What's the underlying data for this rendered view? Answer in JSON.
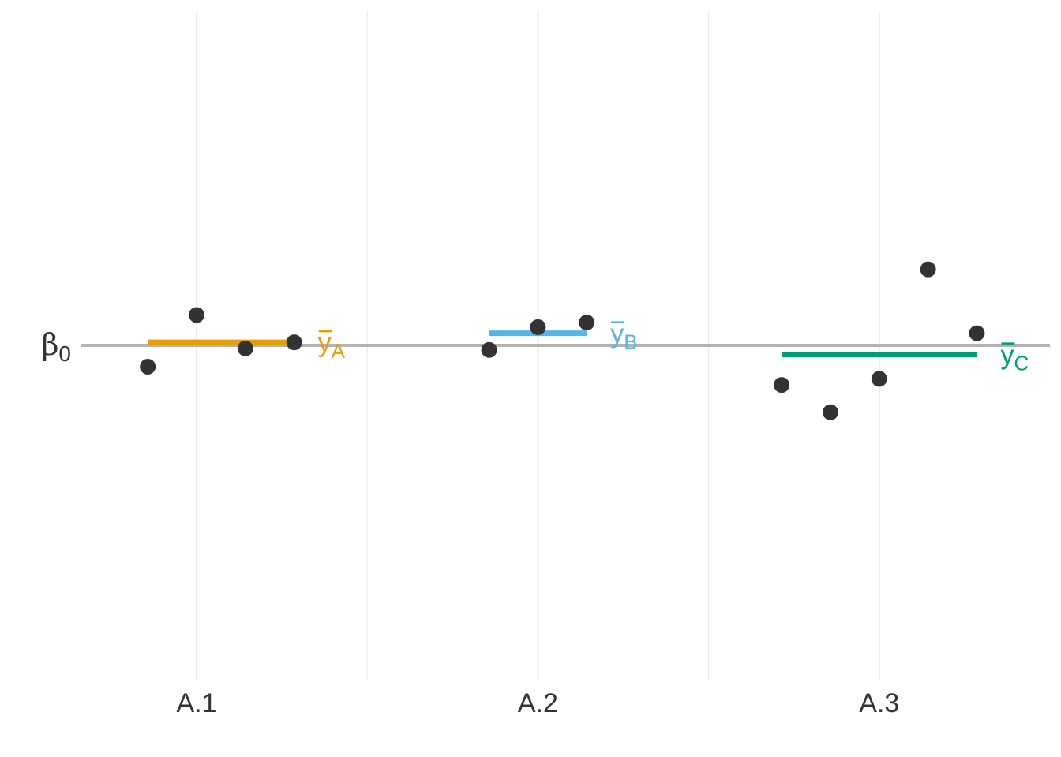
{
  "chart_data": {
    "type": "scatter",
    "title": "",
    "xlabel": "",
    "ylabel": "",
    "x_ticks": [
      "A.1",
      "A.2",
      "A.3"
    ],
    "x_tick_positions": [
      1,
      2,
      3
    ],
    "xlim": [
      0.66,
      3.5
    ],
    "ylim": [
      -1.1,
      1.1
    ],
    "grid": "vertical",
    "reference_line": {
      "label": "β",
      "subscript": "0",
      "value": 0,
      "color": "#b3b3b3"
    },
    "groups": [
      {
        "label": "y",
        "subscript": "A",
        "color": "#e69f00",
        "mean": 0.01,
        "mean_x_range": [
          0.857,
          1.286
        ],
        "points": [
          {
            "x": 0.857,
            "y": -0.07
          },
          {
            "x": 1.0,
            "y": 0.1
          },
          {
            "x": 1.143,
            "y": -0.01
          },
          {
            "x": 1.286,
            "y": 0.01
          }
        ]
      },
      {
        "label": "y",
        "subscript": "B",
        "color": "#56b4e9",
        "mean": 0.04,
        "mean_x_range": [
          1.857,
          2.143
        ],
        "points": [
          {
            "x": 1.857,
            "y": -0.015
          },
          {
            "x": 2.0,
            "y": 0.06
          },
          {
            "x": 2.143,
            "y": 0.075
          }
        ]
      },
      {
        "label": "y",
        "subscript": "C",
        "color": "#009e73",
        "mean": -0.03,
        "mean_x_range": [
          2.714,
          3.286
        ],
        "points": [
          {
            "x": 2.714,
            "y": -0.13
          },
          {
            "x": 2.857,
            "y": -0.22
          },
          {
            "x": 3.0,
            "y": -0.11
          },
          {
            "x": 3.143,
            "y": 0.25
          },
          {
            "x": 3.286,
            "y": 0.04
          }
        ]
      }
    ],
    "point_color": "#333333"
  }
}
